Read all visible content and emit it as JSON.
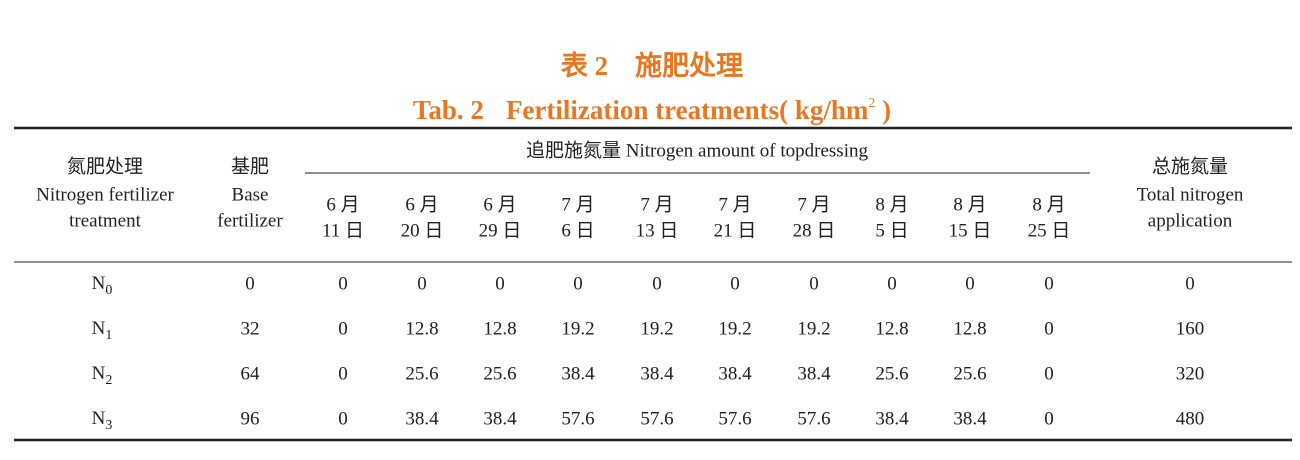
{
  "title_cn": "表 2　施肥处理",
  "title_en": {
    "prefix": "Tab. 2",
    "text": "Fertilization treatments( kg/hm",
    "sup": "2",
    "suffix": " )"
  },
  "header": {
    "treatment": {
      "cn": "氮肥处理",
      "en": [
        "Nitrogen fertilizer",
        "treatment"
      ]
    },
    "base": {
      "cn": "基肥",
      "en": [
        "Base",
        "fertilizer"
      ]
    },
    "topdressing": "追肥施氮量 Nitrogen amount of topdressing",
    "dates": [
      [
        "6 月",
        "11 日"
      ],
      [
        "6 月",
        "20 日"
      ],
      [
        "6 月",
        "29 日"
      ],
      [
        "7 月",
        "6 日"
      ],
      [
        "7 月",
        "13 日"
      ],
      [
        "7 月",
        "21 日"
      ],
      [
        "7 月",
        "28 日"
      ],
      [
        "8 月",
        "5 日"
      ],
      [
        "8 月",
        "15 日"
      ],
      [
        "8 月",
        "25 日"
      ]
    ],
    "total": {
      "cn": "总施氮量",
      "en": [
        "Total nitrogen",
        "application"
      ]
    }
  },
  "rows": [
    {
      "label": "N",
      "sub": "0",
      "values": [
        "0",
        "0",
        "0",
        "0",
        "0",
        "0",
        "0",
        "0",
        "0",
        "0",
        "0",
        "0"
      ]
    },
    {
      "label": "N",
      "sub": "1",
      "values": [
        "32",
        "0",
        "12.8",
        "12.8",
        "19.2",
        "19.2",
        "19.2",
        "19.2",
        "12.8",
        "12.8",
        "0",
        "160"
      ]
    },
    {
      "label": "N",
      "sub": "2",
      "values": [
        "64",
        "0",
        "25.6",
        "25.6",
        "38.4",
        "38.4",
        "38.4",
        "38.4",
        "25.6",
        "25.6",
        "0",
        "320"
      ]
    },
    {
      "label": "N",
      "sub": "3",
      "values": [
        "96",
        "0",
        "38.4",
        "38.4",
        "57.6",
        "57.6",
        "57.6",
        "57.6",
        "38.4",
        "38.4",
        "0",
        "480"
      ]
    }
  ]
}
